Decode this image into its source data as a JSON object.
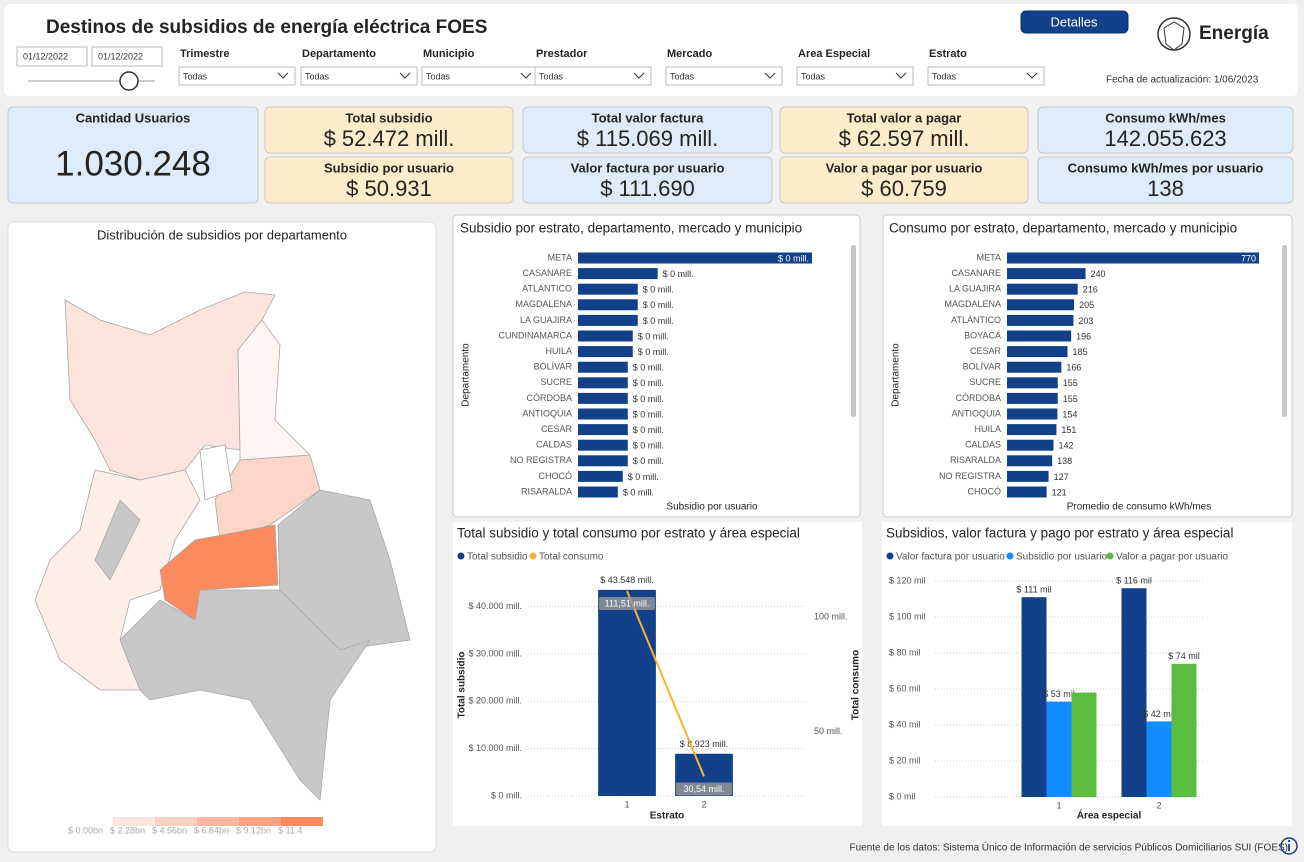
{
  "header": {
    "title": "Destinos de subsidios de energía eléctrica FOES",
    "date_from": "01/12/2022",
    "date_to": "01/12/2022",
    "button": "Detalles",
    "brand": "Energía",
    "updated": "Fecha de actualización: 1/06/2023"
  },
  "filters": [
    {
      "label": "Trimestre",
      "value": "Todas"
    },
    {
      "label": "Departamento",
      "value": "Todas"
    },
    {
      "label": "Municipio",
      "value": "Todas"
    },
    {
      "label": "Prestador",
      "value": "Todas"
    },
    {
      "label": "Mercado",
      "value": "Todas"
    },
    {
      "label": "Area Especial",
      "value": "Todas"
    },
    {
      "label": "Estrato",
      "value": "Todas"
    }
  ],
  "kpis": [
    {
      "label": "Cantidad Usuarios",
      "value": "1.030.248"
    },
    {
      "label": "Total subsidio",
      "value": "$ 52.472 mill."
    },
    {
      "label": "Subsidio por usuario",
      "value": "$ 50.931"
    },
    {
      "label": "Total valor factura",
      "value": "$ 115.069 mill."
    },
    {
      "label": "Valor factura por usuario",
      "value": "$ 111.690"
    },
    {
      "label": "Total valor a pagar",
      "value": "$ 62.597 mill."
    },
    {
      "label": "Valor a pagar por usuario",
      "value": "$ 60.759"
    },
    {
      "label": "Consumo kWh/mes",
      "value": "142.055.623"
    },
    {
      "label": "Consumo kWh/mes por usuario",
      "value": "138"
    }
  ],
  "map": {
    "title": "Distribución de subsidios por departamento",
    "legend_labels": [
      "$ 0.00bn",
      "$ 2.28bn",
      "$ 4.56bn",
      "$ 6.84bn",
      "$ 9.12bn",
      "$ 11.4"
    ]
  },
  "chart_data": [
    {
      "type": "bar",
      "horizontal": true,
      "title": "Subsidio por estrato, departamento, mercado y municipio",
      "y_label": "Departamento",
      "x_label": "Subsidio por usuario",
      "color": "#12418a",
      "categories": [
        "META",
        "CASANARE",
        "ATLÁNTICO",
        "MAGDALENA",
        "LA GUAJIRA",
        "CUNDINAMARCA",
        "HUILA",
        "BOLÍVAR",
        "SUCRE",
        "CÓRDOBA",
        "ANTIOQUIA",
        "CESAR",
        "CALDAS",
        "NO REGISTRA",
        "CHOCÓ",
        "RISARALDA"
      ],
      "values": [
        0.47,
        0.16,
        0.12,
        0.12,
        0.12,
        0.11,
        0.11,
        0.1,
        0.1,
        0.1,
        0.1,
        0.1,
        0.1,
        0.1,
        0.09,
        0.08
      ],
      "value_labels": [
        "$ 0 mill.",
        "$ 0 mill.",
        "$ 0 mill.",
        "$ 0 mill.",
        "$ 0 mill.",
        "$ 0 mill.",
        "$ 0 mill.",
        "$ 0 mill.",
        "$ 0 mill.",
        "$ 0 mill.",
        "$ 0 mill.",
        "$ 0 mill.",
        "$ 0 mill.",
        "$ 0 mill.",
        "$ 0 mill.",
        "$ 0 mill."
      ]
    },
    {
      "type": "bar",
      "horizontal": true,
      "title": "Consumo por estrato, departamento, mercado y municipio",
      "y_label": "Departamento",
      "x_label": "Promedio de consumo kWh/mes",
      "color": "#12418a",
      "categories": [
        "META",
        "CASANARE",
        "LA GUAJIRA",
        "MAGDALENA",
        "ATLÁNTICO",
        "BOYACÁ",
        "CESAR",
        "BOLÍVAR",
        "SUCRE",
        "CÓRDOBA",
        "ANTIOQUIA",
        "HUILA",
        "CALDAS",
        "RISARALDA",
        "NO REGISTRA",
        "CHOCÓ"
      ],
      "values": [
        770,
        240,
        216,
        205,
        203,
        196,
        185,
        166,
        155,
        155,
        154,
        151,
        142,
        138,
        127,
        121
      ]
    },
    {
      "type": "combo",
      "title": "Total subsidio y total consumo por estrato y área especial",
      "x_label": "Estrato",
      "y_label": "Total subsidio",
      "y2_label": "Total consumo",
      "categories": [
        "1",
        "2"
      ],
      "ylim": [
        0,
        45000
      ],
      "yticks": [
        {
          "value": 0,
          "label": "$ 0 mill."
        },
        {
          "value": 10000,
          "label": "$ 10.000 mill."
        },
        {
          "value": 20000,
          "label": "$ 20.000 mill."
        },
        {
          "value": 30000,
          "label": "$ 30.000 mill."
        },
        {
          "value": 40000,
          "label": "$ 40.000 mill."
        }
      ],
      "y2lim": [
        22,
        115
      ],
      "y2ticks": [
        {
          "value": 50,
          "label": "50 mill."
        },
        {
          "value": 100,
          "label": "100 mill."
        }
      ],
      "grid": true,
      "series": [
        {
          "name": "Total subsidio",
          "color": "#12418a",
          "values": [
            43548,
            8923
          ],
          "value_labels": [
            "$ 43.548 mill.",
            "$ 8.923 mill."
          ]
        },
        {
          "name": "Total consumo",
          "color": "#f5b335",
          "axis": "y2",
          "values": [
            111.51,
            30.54
          ],
          "value_labels": [
            "111,51 mill.",
            "30,54 mill."
          ]
        }
      ]
    },
    {
      "type": "grouped",
      "title": "Subsidios, valor factura y pago por estrato y área especial",
      "x_label": "Área especial",
      "categories": [
        "1",
        "2"
      ],
      "ylim": [
        0,
        120
      ],
      "yticks": [
        {
          "value": 0,
          "label": "$ 0 mil"
        },
        {
          "value": 20,
          "label": "$ 20 mil"
        },
        {
          "value": 40,
          "label": "$ 40 mil"
        },
        {
          "value": 60,
          "label": "$ 60 mil"
        },
        {
          "value": 80,
          "label": "$ 80 mil"
        },
        {
          "value": 100,
          "label": "$ 100 mil"
        },
        {
          "value": 120,
          "label": "$ 120 mil"
        }
      ],
      "grid": true,
      "series": [
        {
          "name": "Valor factura por usuario",
          "color": "#12418a",
          "values": [
            111,
            116
          ],
          "value_labels": [
            "$ 111 mil",
            "$ 116 mil"
          ]
        },
        {
          "name": "Subsidio por usuario",
          "color": "#118dff",
          "values": [
            53,
            42
          ],
          "value_labels": [
            "$ 53 mil",
            "$ 42 mil"
          ]
        },
        {
          "name": "Valor a pagar por usuario",
          "color": "#5bbd3f",
          "values": [
            58,
            74
          ],
          "value_labels": [
            null,
            "$ 74 mil"
          ]
        }
      ]
    }
  ],
  "footer": "Fuente de los datos: Sistema Único de Información de servicios Públicos Domiciliarios SUI (FOES)"
}
